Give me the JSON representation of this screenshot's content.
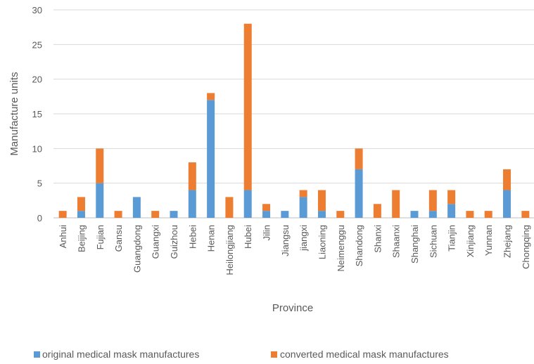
{
  "chart_data": {
    "type": "bar",
    "stacked": true,
    "xlabel": "Province",
    "ylabel": "Manufacture units",
    "ylim": [
      0,
      30
    ],
    "yticks": [
      0,
      5,
      10,
      15,
      20,
      25,
      30
    ],
    "grid": true,
    "legend_position": "bottom",
    "categories": [
      "Anhui",
      "Beijing",
      "Fujian",
      "Gansu",
      "Guangdong",
      "Guangxi",
      "Guizhou",
      "Hebei",
      "Henan",
      "Heilongjiang",
      "Hubei",
      "Jilin",
      "Jiangsu",
      "jiangxi",
      "Liaoning",
      "Neimenggu",
      "Shandong",
      "Shanxi",
      "Shaanxi",
      "Shanghai",
      "Sichuan",
      "Tianjin",
      "Xinjiang",
      "Yunnan",
      "Zhejang",
      "Chongqing"
    ],
    "series": [
      {
        "name": "original medical mask manufactures",
        "color": "#5B9BD5",
        "values": [
          0,
          1,
          5,
          0,
          3,
          0,
          1,
          4,
          17,
          0,
          4,
          1,
          1,
          3,
          1,
          0,
          7,
          0,
          0,
          1,
          1,
          2,
          0,
          0,
          4,
          0
        ]
      },
      {
        "name": "converted medical mask manufactures",
        "color": "#ED7D31",
        "values": [
          1,
          2,
          5,
          1,
          0,
          1,
          0,
          4,
          1,
          3,
          24,
          1,
          0,
          1,
          3,
          1,
          3,
          2,
          4,
          0,
          3,
          2,
          1,
          1,
          3,
          1
        ]
      }
    ]
  }
}
